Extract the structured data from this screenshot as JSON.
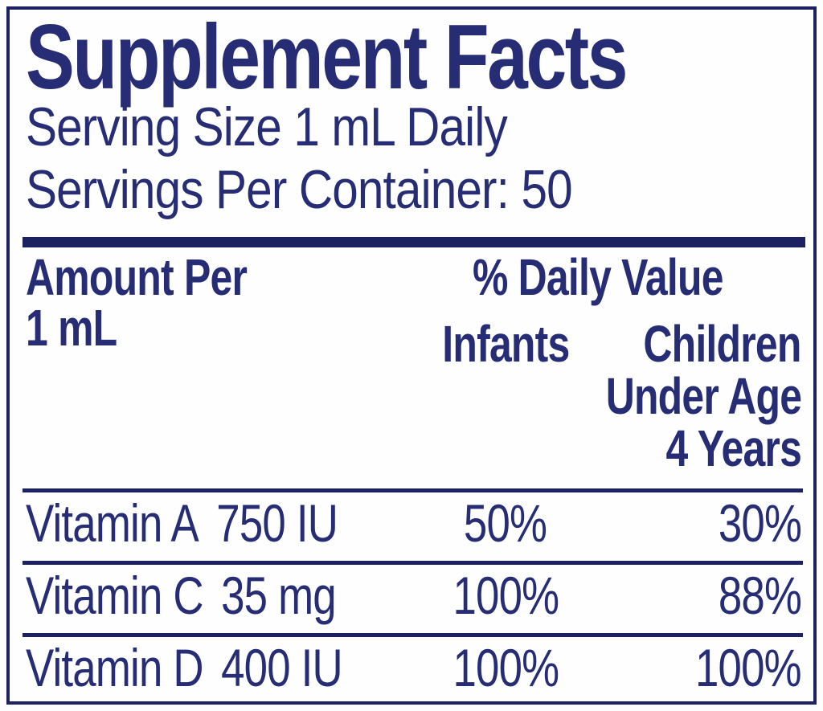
{
  "colors": {
    "navy": "#272d75",
    "rule": "#1c2161",
    "background": "#fefefe"
  },
  "label": {
    "title": "Supplement Facts",
    "serving_size": "Serving Size 1 mL Daily",
    "servings_per_container": "Servings Per Container: 50"
  },
  "table": {
    "amount_header_line1": "Amount Per",
    "amount_header_line2": "1 mL",
    "daily_value_header": "% Daily Value",
    "infants_header": "Infants",
    "children_header_line1": "Children",
    "children_header_line2": "Under Age",
    "children_header_line3": "4 Years",
    "rows": [
      {
        "name": "Vitamin A",
        "amount": "750 IU",
        "infants_dv": "50%",
        "children_dv": "30%"
      },
      {
        "name": "Vitamin C",
        "amount": "35 mg",
        "infants_dv": "100%",
        "children_dv": "88%"
      },
      {
        "name": "Vitamin D",
        "amount": "400 IU",
        "infants_dv": "100%",
        "children_dv": "100%"
      }
    ]
  }
}
